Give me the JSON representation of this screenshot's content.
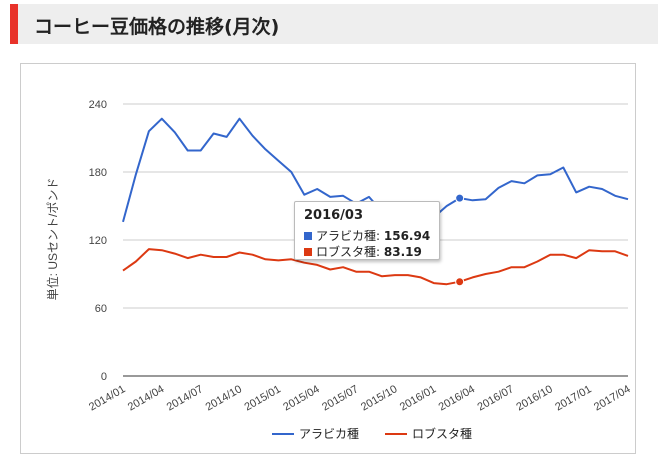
{
  "page": {
    "title": "コーヒー豆価格の推移(月次)"
  },
  "chart_data": {
    "type": "line",
    "ylabel": "単位: USセント/ポンド",
    "ylim": [
      0,
      240
    ],
    "yticks": [
      0,
      60,
      120,
      180,
      240
    ],
    "grid": true,
    "legend_position": "bottom",
    "x": [
      "2014/01",
      "2014/02",
      "2014/03",
      "2014/04",
      "2014/05",
      "2014/06",
      "2014/07",
      "2014/08",
      "2014/09",
      "2014/10",
      "2014/11",
      "2014/12",
      "2015/01",
      "2015/02",
      "2015/03",
      "2015/04",
      "2015/05",
      "2015/06",
      "2015/07",
      "2015/08",
      "2015/09",
      "2015/10",
      "2015/11",
      "2015/12",
      "2016/01",
      "2016/02",
      "2016/03",
      "2016/04",
      "2016/05",
      "2016/06",
      "2016/07",
      "2016/08",
      "2016/09",
      "2016/10",
      "2016/11",
      "2016/12",
      "2017/01",
      "2017/02",
      "2017/03",
      "2017/04"
    ],
    "x_tick_labels": [
      "2014/01",
      "2014/04",
      "2014/07",
      "2014/10",
      "2015/01",
      "2015/04",
      "2015/07",
      "2015/10",
      "2016/01",
      "2016/04",
      "2016/07",
      "2016/10",
      "2017/01",
      "2017/04"
    ],
    "series": [
      {
        "name": "アラビカ種",
        "color": "#3366cc",
        "values": [
          136,
          178,
          216,
          227,
          215,
          199,
          199,
          214,
          211,
          227,
          212,
          200,
          190,
          180,
          160,
          165,
          158,
          159,
          152,
          158,
          145,
          150,
          152,
          148,
          140,
          150,
          156.94,
          155,
          156,
          166,
          172,
          170,
          177,
          178,
          184,
          162,
          167,
          165,
          159,
          156
        ]
      },
      {
        "name": "ロブスタ種",
        "color": "#dc3912",
        "values": [
          93,
          101,
          112,
          111,
          108,
          104,
          107,
          105,
          105,
          109,
          107,
          103,
          102,
          103,
          100,
          98,
          94,
          96,
          92,
          92,
          88,
          89,
          89,
          87,
          82,
          81,
          83.19,
          87,
          90,
          92,
          96,
          96,
          101,
          107,
          107,
          104,
          111,
          110,
          110,
          106
        ]
      }
    ]
  },
  "tooltip": {
    "date": "2016/03",
    "rows": [
      {
        "label": "アラビカ種:",
        "value": "156.94",
        "color": "#3366cc"
      },
      {
        "label": "ロブスタ種:",
        "value": "83.19",
        "color": "#dc3912"
      }
    ]
  }
}
